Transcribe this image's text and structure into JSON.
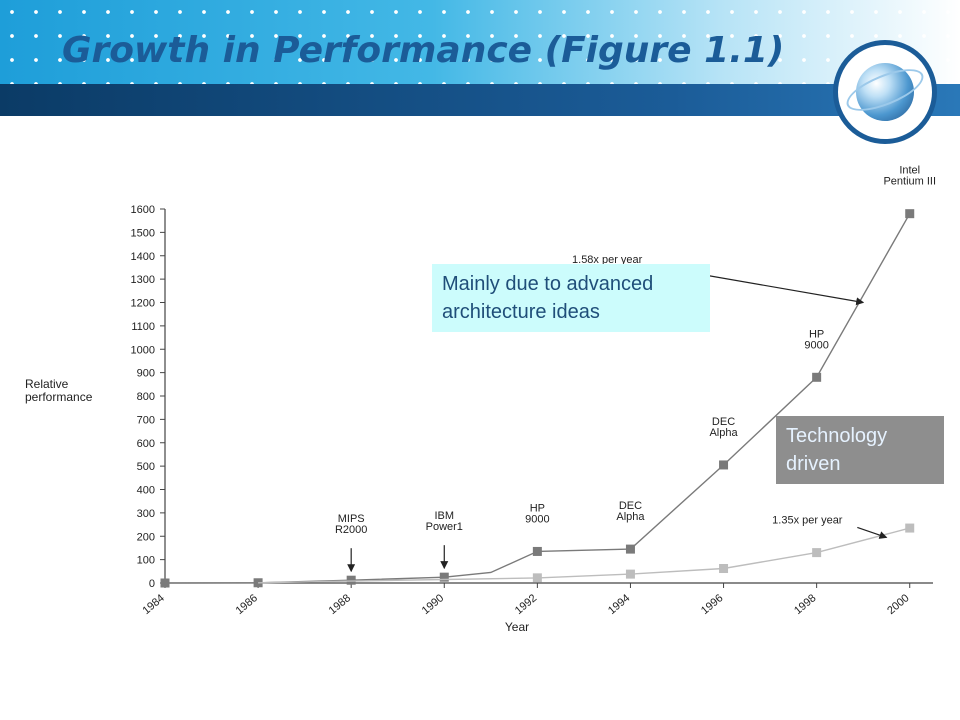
{
  "slide": {
    "title": "Growth in Performance (Figure 1.1)",
    "colors": {
      "title": "#1b5c98",
      "header_bar": "#0b3b66",
      "header_band": "#2aa6de"
    },
    "logo_icon": "globe-icon"
  },
  "callouts": {
    "architecture": "Mainly due to advanced architecture ideas",
    "technology": "Technology driven"
  },
  "chart_data": {
    "type": "line",
    "title": "",
    "xlabel": "Year",
    "ylabel": "Relative performance",
    "x_ticks": [
      "1984",
      "1986",
      "1988",
      "1990",
      "1992",
      "1994",
      "1996",
      "1998",
      "2000"
    ],
    "y_ticks": [
      0,
      100,
      200,
      300,
      400,
      500,
      600,
      700,
      800,
      900,
      1000,
      1100,
      1200,
      1300,
      1400,
      1500,
      1600
    ],
    "xlim": [
      1984,
      2000.5
    ],
    "ylim": [
      0,
      1600
    ],
    "grid": false,
    "series": [
      {
        "color": "#7a7a7a",
        "points": [
          [
            1984,
            0
          ],
          [
            1986,
            1
          ],
          [
            1988,
            12
          ],
          [
            1990,
            25
          ],
          [
            1991,
            45
          ],
          [
            1992,
            135
          ],
          [
            1994,
            145
          ],
          [
            1996,
            505
          ],
          [
            1998,
            880
          ],
          [
            2000,
            1580
          ]
        ],
        "markers": [
          [
            1984,
            0
          ],
          [
            1986,
            1
          ],
          [
            1988,
            12
          ],
          [
            1990,
            25
          ],
          [
            1992,
            135
          ],
          [
            1994,
            145
          ],
          [
            1996,
            505
          ],
          [
            1998,
            880
          ],
          [
            2000,
            1580
          ]
        ]
      },
      {
        "color": "#bdbdbd",
        "points": [
          [
            1986,
            1
          ],
          [
            1988,
            8
          ],
          [
            1990,
            15
          ],
          [
            1992,
            22
          ],
          [
            1994,
            38
          ],
          [
            1996,
            62
          ],
          [
            1998,
            130
          ],
          [
            2000,
            235
          ]
        ],
        "markers": [
          [
            1992,
            22
          ],
          [
            1994,
            38
          ],
          [
            1996,
            62
          ],
          [
            1998,
            130
          ],
          [
            2000,
            235
          ]
        ]
      }
    ],
    "point_labels": [
      {
        "lines": [
          "MIPS",
          "R2000"
        ],
        "x": 1988,
        "y": 12,
        "arrow": true
      },
      {
        "lines": [
          "IBM",
          "Power1"
        ],
        "x": 1990,
        "y": 25,
        "arrow": true
      },
      {
        "lines": [
          "HP",
          "9000"
        ],
        "x": 1992,
        "y": 135,
        "arrow": false
      },
      {
        "lines": [
          "DEC",
          "Alpha"
        ],
        "x": 1994,
        "y": 145,
        "arrow": false
      },
      {
        "lines": [
          "DEC",
          "Alpha"
        ],
        "x": 1996,
        "y": 505,
        "arrow": false
      },
      {
        "lines": [
          "HP",
          "9000"
        ],
        "x": 1998,
        "y": 880,
        "arrow": false
      },
      {
        "lines": [
          "Intel",
          "Pentium III"
        ],
        "x": 2000,
        "y": 1580,
        "arrow": false
      }
    ],
    "annotations": [
      {
        "text": "1.35x per year",
        "tx": 1997.8,
        "ty": 255,
        "target_x": 1999.5,
        "target_y": 195
      },
      {
        "text": "1.58x per year",
        "tx": 1993.5,
        "ty": 1370,
        "target_x": 1999.0,
        "target_y": 1200
      }
    ]
  }
}
